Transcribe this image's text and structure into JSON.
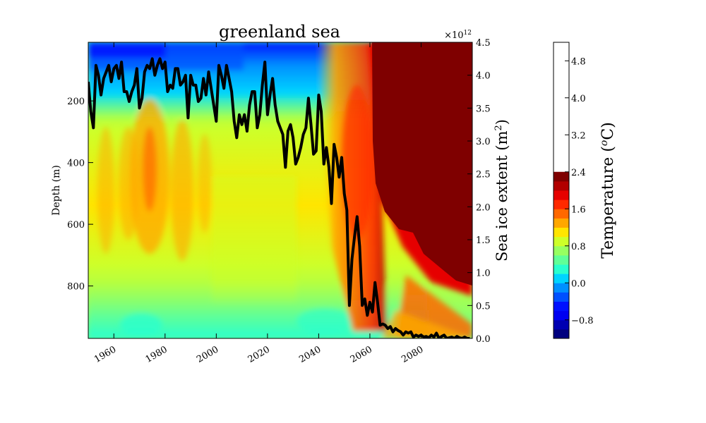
{
  "chart_data": {
    "type": "heatmap",
    "title": "greenland sea",
    "xlabel": "",
    "ylabel_left": "Depth (m)",
    "ylabel_right_main": "Sea ice extent (m",
    "ylabel_right_sup": "2",
    "ylabel_right_close": ")",
    "right_axis_multiplier": "×10",
    "right_axis_multiplier_exp": "12",
    "colorbar_label_main": "Temperature (",
    "colorbar_label_sup": "o",
    "colorbar_label_close": "C)",
    "xlim": [
      1950,
      2100
    ],
    "ylim_left": [
      970,
      10
    ],
    "ylim_right": [
      0,
      4.5
    ],
    "x_ticks": [
      1960,
      1980,
      2000,
      2020,
      2040,
      2060,
      2080
    ],
    "x_tick_labels": [
      "1960",
      "1980",
      "2000",
      "2020",
      "2040",
      "2060",
      "2080"
    ],
    "y_left_ticks": [
      200,
      400,
      600,
      800
    ],
    "y_left_tick_labels": [
      "200",
      "400",
      "600",
      "800"
    ],
    "y_right_ticks": [
      0,
      0.5,
      1.0,
      1.5,
      2.0,
      2.5,
      3.0,
      3.5,
      4.0,
      4.5
    ],
    "y_right_tick_labels": [
      "0.0",
      "0.5",
      "1.0",
      "1.5",
      "2.0",
      "2.5",
      "3.0",
      "3.5",
      "4.0",
      "4.5"
    ],
    "colorbar_range": [
      -1.2,
      5.2
    ],
    "colorbar_ticks": [
      -0.8,
      0.0,
      0.8,
      1.6,
      2.4,
      3.2,
      4.0,
      4.8
    ],
    "colorbar_tick_labels": [
      "−0.8",
      "0.0",
      "0.8",
      "1.6",
      "2.4",
      "3.2",
      "4.0",
      "4.8"
    ],
    "colorbar_levels": [
      -1.2,
      -1.0,
      -0.8,
      -0.6,
      -0.4,
      -0.2,
      0.0,
      0.2,
      0.4,
      0.6,
      0.8,
      1.0,
      1.2,
      1.4,
      1.6,
      1.8,
      2.0,
      2.2,
      2.4,
      5.2
    ],
    "colorbar_colors": [
      "#00007f",
      "#0000b2",
      "#0000f1",
      "#0010ff",
      "#0050ff",
      "#0090ff",
      "#00d4ff",
      "#29ffce",
      "#60ff97",
      "#97ff60",
      "#ceff29",
      "#ffe500",
      "#ffa700",
      "#ff6800",
      "#ff2900",
      "#e60000",
      "#b20000",
      "#7f0000"
    ],
    "series": [
      {
        "name": "",
        "type": "line",
        "axis": "right",
        "color": "#000000",
        "x": [
          1950,
          1951,
          1952,
          1953,
          1954,
          1955,
          1956,
          1957,
          1958,
          1959,
          1960,
          1961,
          1962,
          1963,
          1964,
          1965,
          1966,
          1967,
          1968,
          1969,
          1970,
          1971,
          1972,
          1973,
          1974,
          1975,
          1976,
          1977,
          1978,
          1979,
          1980,
          1981,
          1982,
          1983,
          1984,
          1985,
          1986,
          1987,
          1988,
          1989,
          1990,
          1991,
          1992,
          1993,
          1994,
          1995,
          1996,
          1997,
          1998,
          1999,
          2000,
          2001,
          2002,
          2003,
          2004,
          2005,
          2006,
          2007,
          2008,
          2009,
          2010,
          2011,
          2012,
          2013,
          2014,
          2015,
          2016,
          2017,
          2018,
          2019,
          2020,
          2021,
          2022,
          2023,
          2024,
          2025,
          2026,
          2027,
          2028,
          2029,
          2030,
          2031,
          2032,
          2033,
          2034,
          2035,
          2036,
          2037,
          2038,
          2039,
          2040,
          2041,
          2042,
          2043,
          2044,
          2045,
          2046,
          2047,
          2048,
          2049,
          2050,
          2051,
          2052,
          2053,
          2054,
          2055,
          2056,
          2057,
          2058,
          2059,
          2060,
          2061,
          2062,
          2063,
          2064,
          2065,
          2066,
          2067,
          2068,
          2069,
          2070,
          2071,
          2072,
          2073,
          2074,
          2075,
          2076,
          2077,
          2078,
          2079,
          2080,
          2081,
          2082,
          2083,
          2084,
          2085,
          2086,
          2087,
          2088,
          2089,
          2090,
          2091,
          2092,
          2093,
          2094,
          2095,
          2096,
          2097,
          2098,
          2099
        ],
        "y": [
          3.9,
          3.45,
          3.2,
          4.15,
          4.0,
          3.7,
          3.95,
          4.05,
          4.15,
          3.9,
          4.1,
          4.15,
          3.95,
          4.2,
          3.75,
          3.75,
          3.6,
          3.75,
          3.85,
          4.1,
          3.5,
          3.65,
          4.05,
          4.15,
          4.1,
          4.25,
          4.0,
          4.15,
          4.25,
          4.1,
          4.2,
          3.75,
          3.85,
          3.8,
          4.1,
          4.1,
          3.85,
          3.9,
          4.0,
          3.35,
          4.0,
          3.85,
          3.85,
          3.6,
          3.65,
          3.95,
          3.7,
          4.05,
          3.8,
          3.55,
          3.3,
          4.15,
          4.0,
          3.8,
          4.15,
          3.95,
          3.75,
          3.3,
          3.05,
          3.4,
          3.25,
          3.4,
          3.15,
          3.55,
          3.75,
          3.75,
          3.2,
          3.4,
          3.85,
          4.2,
          3.4,
          3.7,
          3.95,
          3.55,
          3.3,
          3.2,
          3.1,
          2.6,
          3.15,
          3.25,
          3.05,
          2.65,
          2.75,
          2.9,
          3.1,
          3.2,
          3.65,
          3.25,
          2.8,
          2.85,
          3.7,
          3.45,
          2.65,
          2.9,
          2.6,
          2.05,
          2.95,
          2.75,
          2.45,
          2.75,
          2.2,
          1.95,
          0.5,
          1.2,
          1.55,
          1.85,
          1.4,
          0.5,
          0.6,
          0.35,
          0.55,
          0.4,
          0.85,
          0.55,
          0.2,
          0.22,
          0.2,
          0.15,
          0.18,
          0.1,
          0.15,
          0.12,
          0.1,
          0.05,
          0.1,
          0.08,
          0.1,
          0.02,
          0.05,
          0.03,
          0.05,
          0.02,
          0.03,
          0.01,
          0.05,
          0.02,
          0.08,
          0.0,
          0.03,
          0.05,
          0.0,
          0.01,
          0.02,
          0.0,
          0.03,
          0.01,
          0.0,
          0.02,
          0.0,
          0.0
        ]
      }
    ]
  }
}
